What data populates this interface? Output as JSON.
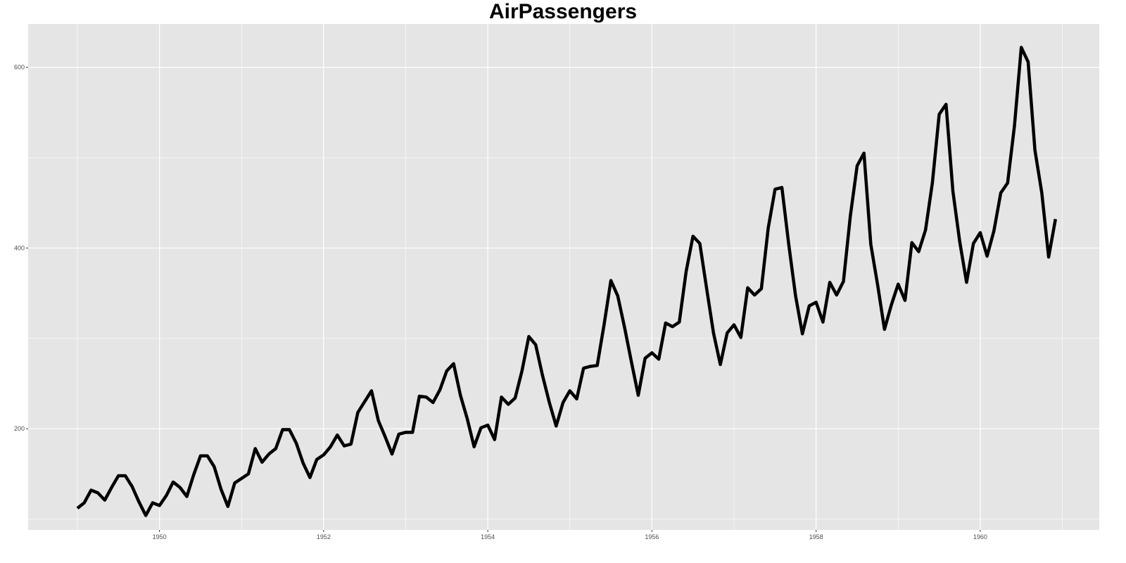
{
  "chart_data": {
    "type": "line",
    "title": "AirPassengers",
    "xlabel": "",
    "ylabel": "",
    "x_start": 1949,
    "x_step_months": 1,
    "values": [
      112,
      118,
      132,
      129,
      121,
      135,
      148,
      148,
      136,
      119,
      104,
      118,
      115,
      126,
      141,
      135,
      125,
      149,
      170,
      170,
      158,
      133,
      114,
      140,
      145,
      150,
      178,
      163,
      172,
      178,
      199,
      199,
      184,
      162,
      146,
      166,
      171,
      180,
      193,
      181,
      183,
      218,
      230,
      242,
      209,
      191,
      172,
      194,
      196,
      196,
      236,
      235,
      229,
      243,
      264,
      272,
      237,
      211,
      180,
      201,
      204,
      188,
      235,
      227,
      234,
      264,
      302,
      293,
      259,
      229,
      203,
      229,
      242,
      233,
      267,
      269,
      270,
      315,
      364,
      347,
      312,
      274,
      237,
      278,
      284,
      277,
      317,
      313,
      318,
      374,
      413,
      405,
      355,
      306,
      271,
      306,
      315,
      301,
      356,
      348,
      355,
      422,
      465,
      467,
      404,
      347,
      305,
      336,
      340,
      318,
      362,
      348,
      363,
      435,
      491,
      505,
      404,
      359,
      310,
      337,
      360,
      342,
      406,
      396,
      420,
      472,
      548,
      559,
      463,
      407,
      362,
      405,
      417,
      391,
      419,
      461,
      472,
      535,
      622,
      606,
      508,
      461,
      390,
      432
    ],
    "xlim": [
      1948.4,
      1961.45
    ],
    "ylim": [
      88,
      648
    ],
    "x_ticks": [
      "1950",
      "1952",
      "1954",
      "1956",
      "1958",
      "1960"
    ],
    "y_ticks": [
      "200",
      "400",
      "600"
    ],
    "grid": true,
    "legend": "none",
    "colors": {
      "panel": "#e5e5e5",
      "grid": "#ffffff",
      "line": "#000000",
      "tick": "#4d4d4d"
    }
  }
}
